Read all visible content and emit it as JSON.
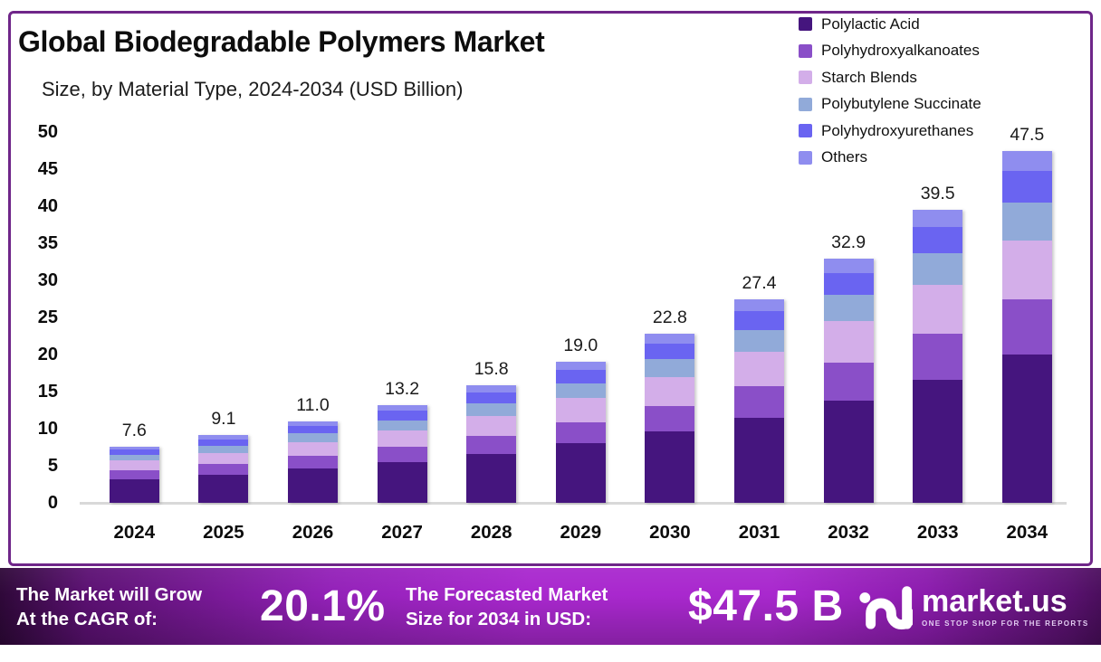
{
  "chart_data": {
    "type": "bar",
    "stacked": true,
    "title": "Global Biodegradable Polymers Market",
    "subtitle": "Size, by Material Type, 2024-2034 (USD Billion)",
    "categories": [
      "2024",
      "2025",
      "2026",
      "2027",
      "2028",
      "2029",
      "2030",
      "2031",
      "2032",
      "2033",
      "2034"
    ],
    "series": [
      {
        "name": "Polylactic Acid",
        "color": "#45157E",
        "values": [
          3.2,
          3.8,
          4.6,
          5.5,
          6.6,
          8.0,
          9.6,
          11.5,
          13.8,
          16.6,
          20.0
        ]
      },
      {
        "name": "Polyhydroxyalkanoates",
        "color": "#8A4FC8",
        "values": [
          1.2,
          1.4,
          1.7,
          2.05,
          2.45,
          2.85,
          3.5,
          4.2,
          5.1,
          6.2,
          7.4
        ]
      },
      {
        "name": "Starch Blends",
        "color": "#D3AEE9",
        "values": [
          1.3,
          1.5,
          1.85,
          2.2,
          2.65,
          3.25,
          3.9,
          4.7,
          5.6,
          6.6,
          8.0
        ]
      },
      {
        "name": "Polybutylene Succinate",
        "color": "#91AAD9",
        "values": [
          0.8,
          1.0,
          1.2,
          1.4,
          1.7,
          2.0,
          2.4,
          2.9,
          3.5,
          4.3,
          5.1
        ]
      },
      {
        "name": "Polyhydroxyurethanes",
        "color": "#6A64F1",
        "values": [
          0.7,
          0.85,
          1.0,
          1.25,
          1.45,
          1.8,
          2.1,
          2.5,
          3.0,
          3.5,
          4.2
        ]
      },
      {
        "name": "Others",
        "color": "#8F8DEF",
        "values": [
          0.4,
          0.55,
          0.65,
          0.8,
          0.95,
          1.1,
          1.3,
          1.6,
          1.9,
          2.3,
          2.8
        ]
      }
    ],
    "totals": [
      7.6,
      9.1,
      11.0,
      13.2,
      15.8,
      19.0,
      22.8,
      27.4,
      32.9,
      39.5,
      47.5
    ],
    "xlabel": "",
    "ylabel": "",
    "ylim": [
      0,
      50
    ],
    "yticks": [
      0,
      5,
      10,
      15,
      20,
      25,
      30,
      35,
      40,
      45,
      50
    ],
    "grid": false,
    "legend_position": "top-right",
    "value_labels": "stack totals shown above each bar"
  },
  "banner": {
    "cagr_label": [
      "The Market will Grow",
      "At the CAGR of:"
    ],
    "cagr_value": "20.1%",
    "forecast_label": [
      "The Forecasted Market",
      "Size for 2034 in USD:"
    ],
    "forecast_value": "$47.5 B",
    "brand": {
      "name": "market.us",
      "tagline": "ONE STOP SHOP FOR THE REPORTS"
    }
  },
  "colors": {
    "card_border": "#6F2689",
    "axis_line": "#D9D9D9",
    "text": "#0D0D0D",
    "banner_text": "#FFFFFF",
    "banner_gradient": [
      "#2E0838",
      "#A928CE",
      "#4A0E5C"
    ]
  }
}
